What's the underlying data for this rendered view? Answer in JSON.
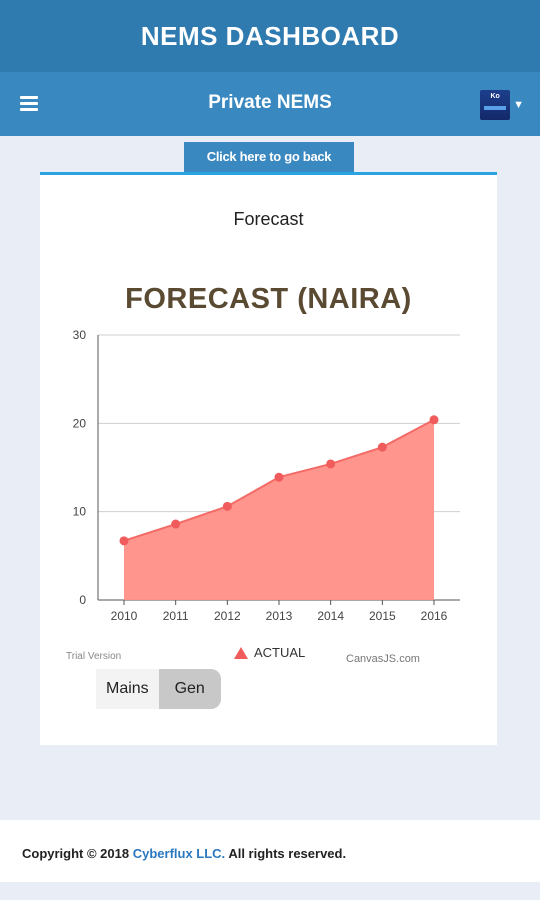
{
  "app": {
    "title": "NEMS DASHBOARD"
  },
  "nav": {
    "title": "Private NEMS",
    "avatar_text": "Ko"
  },
  "back_button": {
    "label": "Click here to go back"
  },
  "card": {
    "heading": "Forecast"
  },
  "chart_data": {
    "type": "area",
    "title": "FORECAST (NAIRA)",
    "x": [
      "2010",
      "2011",
      "2012",
      "2013",
      "2014",
      "2015",
      "2016"
    ],
    "series": [
      {
        "name": "ACTUAL",
        "values": [
          6.7,
          8.6,
          10.6,
          13.9,
          15.4,
          17.3,
          20.4
        ]
      }
    ],
    "ylim": [
      0,
      30
    ],
    "yticks": [
      0,
      10,
      20,
      30
    ],
    "grid": true,
    "legend_position": "bottom",
    "colors": {
      "fill": "#ff8f87",
      "line": "#f36b66",
      "marker": "#f05b5b"
    }
  },
  "chart_watermarks": {
    "trial": "Trial Version",
    "credit": "CanvasJS.com"
  },
  "toggle": {
    "options": [
      "Mains",
      "Gen"
    ],
    "selected": "Gen"
  },
  "footer": {
    "prefix": "Copyright © 2018 ",
    "company": "Cyberflux LLC.",
    "suffix": " All rights reserved."
  }
}
